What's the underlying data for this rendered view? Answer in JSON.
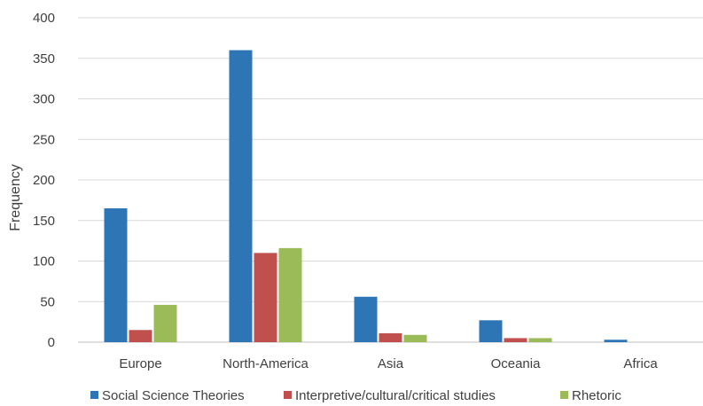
{
  "chart_data": {
    "type": "bar",
    "title": "",
    "xlabel": "",
    "ylabel": "Frequency",
    "ylim": [
      0,
      400
    ],
    "yticks": [
      0,
      50,
      100,
      150,
      200,
      250,
      300,
      350,
      400
    ],
    "grid": true,
    "legend_position": "bottom",
    "categories": [
      "Europe",
      "North-America",
      "Asia",
      "Oceania",
      "Africa"
    ],
    "series": [
      {
        "name": "Social Science Theories",
        "color": "#2E75B6",
        "values": [
          165,
          360,
          56,
          27,
          3
        ]
      },
      {
        "name": "Interpretive/cultural/critical studies",
        "color": "#C0504D",
        "values": [
          15,
          110,
          11,
          5,
          0
        ]
      },
      {
        "name": "Rhetoric",
        "color": "#9BBB59",
        "values": [
          46,
          116,
          9,
          5,
          0
        ]
      }
    ]
  }
}
